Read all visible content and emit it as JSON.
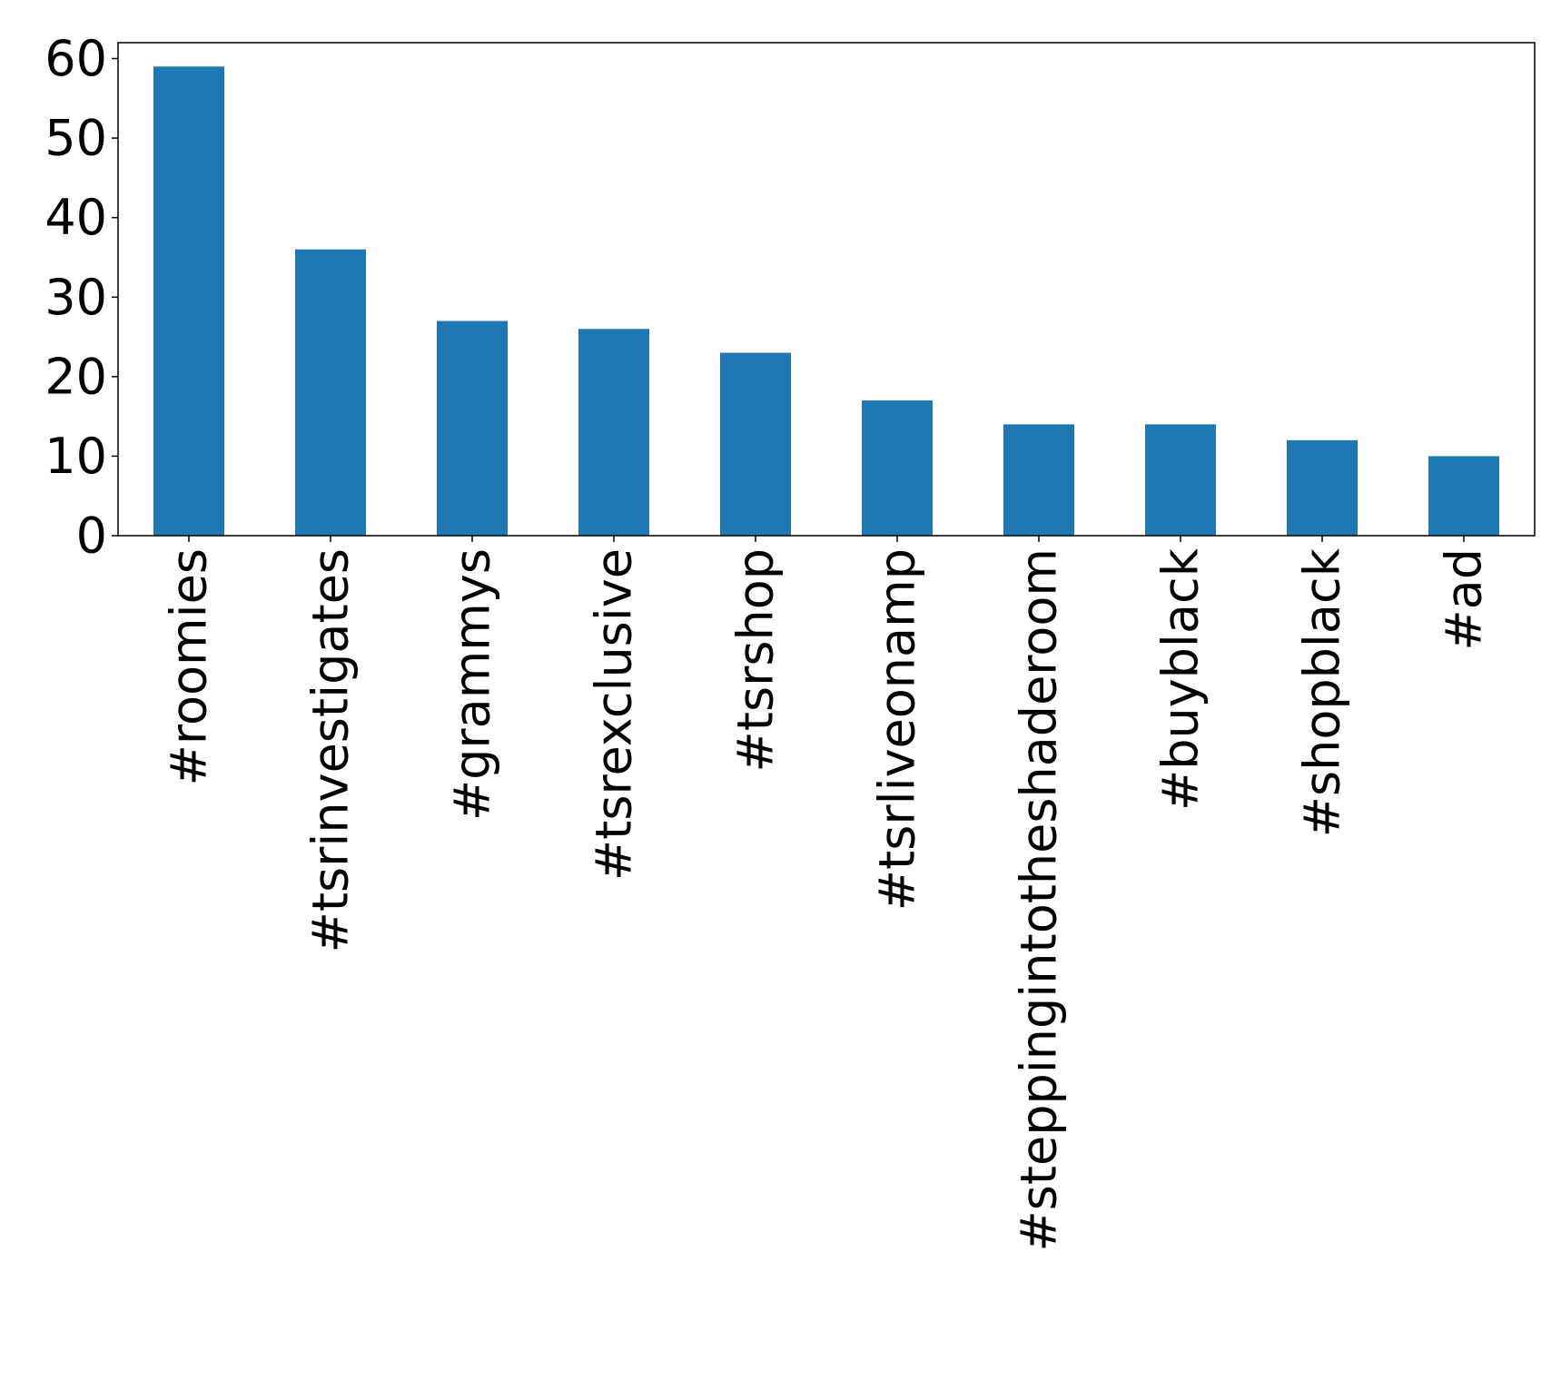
{
  "chart_data": {
    "type": "bar",
    "categories": [
      "#roomies",
      "#tsrinvestigates",
      "#grammys",
      "#tsrexclusive",
      "#tsrshop",
      "#tsrliveonamp",
      "#steppingintotheshaderoom",
      "#buyblack",
      "#shopblack",
      "#ad"
    ],
    "values": [
      59,
      36,
      27,
      26,
      23,
      17,
      14,
      14,
      12,
      10
    ],
    "ylim": [
      0,
      62
    ],
    "yticks": [
      0,
      10,
      20,
      30,
      40,
      50,
      60
    ],
    "bar_color": "#1f77b4",
    "grid": false,
    "legend": "none"
  }
}
